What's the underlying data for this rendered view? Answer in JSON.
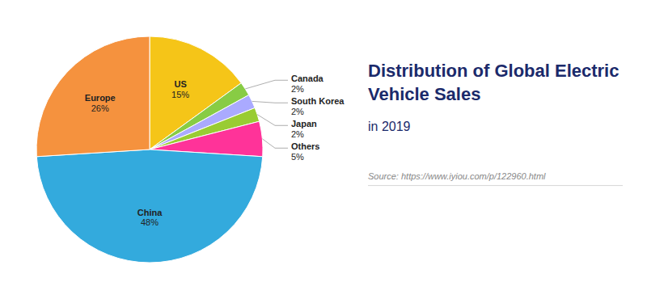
{
  "chart_data": {
    "type": "pie",
    "title": "Distribution of Global Electric Vehicle Sales",
    "subtitle": "in 2019",
    "annotations": [
      "Source: https://www.iyiou.com/p/122960.html"
    ],
    "categories": [
      "US",
      "Canada",
      "South Korea",
      "Japan",
      "Others",
      "China",
      "Europe"
    ],
    "values": [
      15,
      2,
      2,
      2,
      5,
      48,
      26
    ],
    "value_labels": [
      "15%",
      "2%",
      "2%",
      "2%",
      "5%",
      "48%",
      "26%"
    ],
    "colors": [
      "#F5C518",
      "#88CC44",
      "#AAAAFF",
      "#99CC33",
      "#FF3399",
      "#33AADD",
      "#F5923E"
    ],
    "data_labels": true
  }
}
